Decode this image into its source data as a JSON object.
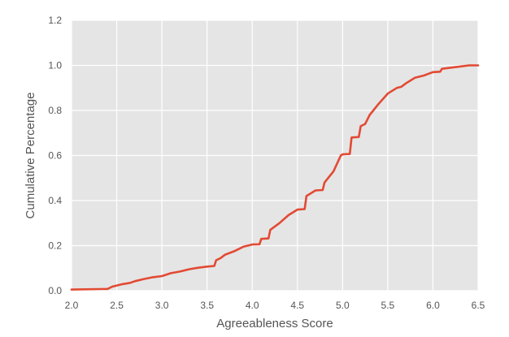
{
  "chart_data": {
    "type": "line",
    "title": "",
    "xlabel": "Agreeableness Score",
    "ylabel": "Cumulative Percentage",
    "xlim": [
      2.0,
      6.5
    ],
    "ylim": [
      0.0,
      1.2
    ],
    "x_ticks": [
      "2.0",
      "2.5",
      "3.0",
      "3.5",
      "4.0",
      "4.5",
      "5.0",
      "5.5",
      "6.0",
      "6.5"
    ],
    "y_ticks": [
      "0.0",
      "0.2",
      "0.4",
      "0.6",
      "0.8",
      "1.0",
      "1.2"
    ],
    "grid": true,
    "legend": "none",
    "colors": {
      "line": "#E24A33",
      "plot_bg": "#E5E5E5",
      "grid": "#FFFFFF",
      "text": "#555555"
    },
    "series": [
      {
        "x": [
          2.0,
          2.4,
          2.45,
          2.55,
          2.65,
          2.7,
          2.8,
          2.9,
          3.0,
          3.1,
          3.2,
          3.3,
          3.4,
          3.5,
          3.58,
          3.6,
          3.65,
          3.7,
          3.8,
          3.9,
          4.0,
          4.08,
          4.1,
          4.18,
          4.2,
          4.3,
          4.4,
          4.5,
          4.58,
          4.6,
          4.7,
          4.78,
          4.8,
          4.9,
          4.98,
          5.0,
          5.08,
          5.1,
          5.18,
          5.2,
          5.25,
          5.3,
          5.4,
          5.5,
          5.6,
          5.65,
          5.7,
          5.8,
          5.9,
          6.0,
          6.08,
          6.1,
          6.2,
          6.3,
          6.4,
          6.5
        ],
        "y": [
          0.005,
          0.008,
          0.018,
          0.028,
          0.035,
          0.042,
          0.052,
          0.06,
          0.065,
          0.078,
          0.085,
          0.095,
          0.102,
          0.107,
          0.11,
          0.135,
          0.145,
          0.16,
          0.175,
          0.195,
          0.205,
          0.206,
          0.23,
          0.232,
          0.27,
          0.3,
          0.335,
          0.36,
          0.362,
          0.42,
          0.445,
          0.447,
          0.48,
          0.53,
          0.6,
          0.605,
          0.607,
          0.68,
          0.682,
          0.73,
          0.74,
          0.78,
          0.83,
          0.875,
          0.9,
          0.905,
          0.92,
          0.945,
          0.955,
          0.97,
          0.972,
          0.985,
          0.99,
          0.995,
          1.0,
          1.0
        ]
      }
    ]
  }
}
